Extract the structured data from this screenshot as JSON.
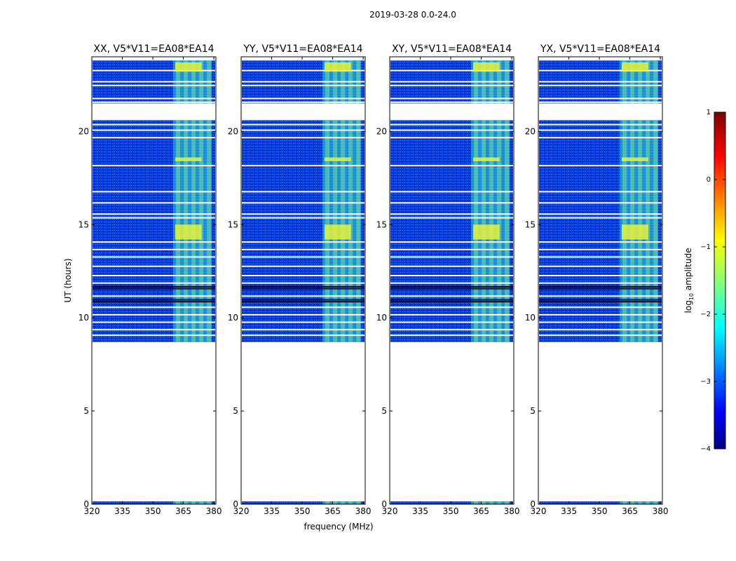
{
  "title": "2019-03-28 0.0-24.0",
  "chart_data": {
    "type": "heatmap",
    "title": "2019-03-28 0.0-24.0",
    "xlabel": "frequency (MHz)",
    "ylabel": "UT (hours)",
    "xlim": [
      320,
      381
    ],
    "ylim": [
      0,
      24
    ],
    "xticks": [
      320,
      335,
      350,
      365,
      380
    ],
    "yticks": [
      0,
      5,
      10,
      15,
      20
    ],
    "panels": [
      {
        "title": "XX, V5*V11=EA08*EA14",
        "polarization": "XX"
      },
      {
        "title": "YY, V5*V11=EA08*EA14",
        "polarization": "YY"
      },
      {
        "title": "XY, V5*V11=EA08*EA14",
        "polarization": "XY"
      },
      {
        "title": "YX, V5*V11=EA08*EA14",
        "polarization": "YX"
      }
    ],
    "data_coverage_hours": [
      [
        0.0,
        0.15
      ],
      [
        8.7,
        20.6
      ],
      [
        21.5,
        23.8
      ]
    ],
    "bright_band_mhz": [
      360,
      379
    ],
    "colorbar": {
      "label": "log10 amplitude",
      "label_base": "log",
      "label_sub": "10",
      "label_rest": " amplitude",
      "range": [
        -4,
        1
      ],
      "ticks": [
        {
          "value": 1,
          "label": "1"
        },
        {
          "value": 0,
          "label": "0"
        },
        {
          "value": -1,
          "label": "−1"
        },
        {
          "value": -2,
          "label": "−2"
        },
        {
          "value": -3,
          "label": "−3"
        },
        {
          "value": -4,
          "label": "−4"
        }
      ],
      "colormap": "jet"
    }
  }
}
